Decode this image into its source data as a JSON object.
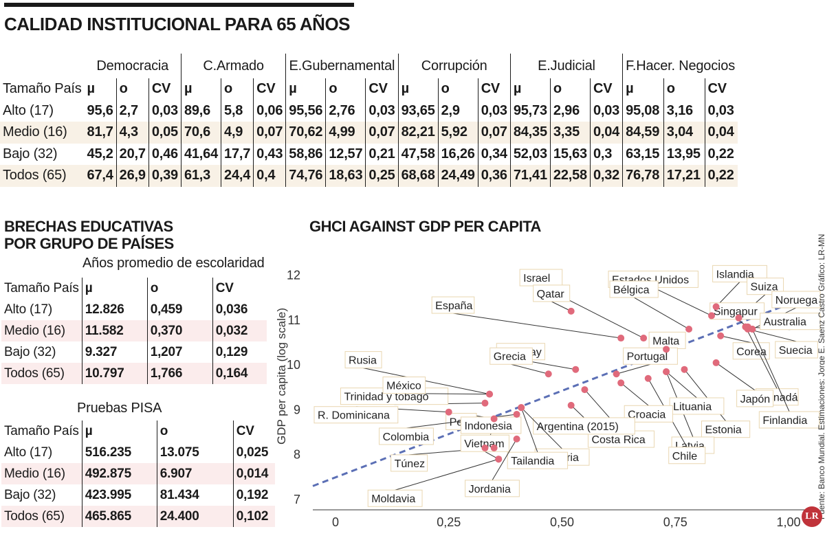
{
  "main_title": "CALIDAD INSTITUCIONAL PARA 65 AÑOS",
  "table1": {
    "groups": [
      "Democracia",
      "C.Armado",
      "E.Gubernamental",
      "Corrupción",
      "E.Judicial",
      "F.Hacer. Negocios"
    ],
    "row_header": "Tamaño País",
    "stat_labels": [
      "µ",
      "o",
      "CV"
    ],
    "rows": [
      {
        "label": "Alto (17)",
        "values": [
          "95,6",
          "2,7",
          "0,03",
          "89,6",
          "5,8",
          "0,06",
          "95,56",
          "2,76",
          "0,03",
          "93,65",
          "2,9",
          "0,03",
          "95,73",
          "2,96",
          "0,03",
          "95,08",
          "3,16",
          "0,03"
        ]
      },
      {
        "label": "Medio (16)",
        "values": [
          "81,7",
          "4,3",
          "0,05",
          "70,6",
          "4,9",
          "0,07",
          "70,62",
          "4,99",
          "0,07",
          "82,21",
          "5,92",
          "0,07",
          "84,35",
          "3,35",
          "0,04",
          "84,59",
          "3,04",
          "0,04"
        ]
      },
      {
        "label": "Bajo (32)",
        "values": [
          "45,2",
          "20,7",
          "0,46",
          "41,64",
          "17,7",
          "0,43",
          "58,86",
          "12,57",
          "0,21",
          "47,58",
          "16,26",
          "0,34",
          "52,03",
          "15,63",
          "0,3",
          "63,15",
          "13,95",
          "0,22"
        ]
      },
      {
        "label": "Todos (65)",
        "values": [
          "67,4",
          "26,9",
          "0,39",
          "61,3",
          "24,4",
          "0,4",
          "74,76",
          "18,63",
          "0,25",
          "68,68",
          "24,49",
          "0,36",
          "71,41",
          "22,58",
          "0,32",
          "76,78",
          "17,21",
          "0,22"
        ]
      }
    ]
  },
  "section2_title_line1": "BRECHAS EDUCATIVAS",
  "section2_title_line2": "POR GRUPO DE PAÍSES",
  "schooling": {
    "subtitle": "Años promedio de escolaridad",
    "headers": [
      "Tamaño País",
      "µ",
      "o",
      "CV"
    ],
    "rows": [
      [
        "Alto (17)",
        "12.826",
        "0,459",
        "0,036"
      ],
      [
        "Medio (16)",
        "11.582",
        "0,370",
        "0,032"
      ],
      [
        "Bajo (32)",
        "9.327",
        "1,207",
        "0,129"
      ],
      [
        "Todos (65)",
        "10.797",
        "1,766",
        "0,164"
      ]
    ]
  },
  "pisa": {
    "subtitle": "Pruebas PISA",
    "headers": [
      "Tamaño País",
      "µ",
      "o",
      "CV"
    ],
    "rows": [
      [
        "Alto (17)",
        "516.235",
        "13.075",
        "0,025"
      ],
      [
        "Medio (16)",
        "492.875",
        "6.907",
        "0,014"
      ],
      [
        "Bajo (32)",
        "423.995",
        "81.434",
        "0,192"
      ],
      [
        "Todos (65)",
        "465.865",
        "24.400",
        "0,102"
      ]
    ]
  },
  "chart_data": {
    "type": "scatter",
    "title": "GHCI AGAINST GDP PER CAPITA",
    "xlabel": "",
    "ylabel": "GDP per capita (log scale)",
    "xlim": [
      -0.05,
      1.05
    ],
    "ylim": [
      6.8,
      12.7
    ],
    "x_ticks": [
      0,
      0.25,
      0.5,
      0.75,
      1.0
    ],
    "x_tick_labels": [
      "0",
      "0,25",
      "0,50",
      "0,75",
      "1,00"
    ],
    "y_ticks": [
      7,
      8,
      9,
      10,
      11,
      12
    ],
    "y_tick_labels": [
      "7",
      "8",
      "9",
      "10",
      "11",
      "12"
    ],
    "trendline": {
      "x": [
        -0.05,
        1.05
      ],
      "y": [
        7.3,
        11.55
      ],
      "color": "#5b6fb5",
      "style": "dashed"
    },
    "point_color": "#e06a7b",
    "grid": false,
    "points": [
      {
        "name": "Islandia",
        "x": 0.84,
        "y": 11.3
      },
      {
        "name": "Estados Unidos",
        "x": 0.83,
        "y": 11.1
      },
      {
        "name": "Suiza",
        "x": 0.89,
        "y": 11.05
      },
      {
        "name": "Singapur",
        "x": 0.91,
        "y": 10.85
      },
      {
        "name": "Noruega",
        "x": 0.92,
        "y": 10.8
      },
      {
        "name": "Australia",
        "x": 0.905,
        "y": 10.85
      },
      {
        "name": "Suecia",
        "x": 0.91,
        "y": 10.8
      },
      {
        "name": "Israel",
        "x": 0.68,
        "y": 10.6
      },
      {
        "name": "Qatar",
        "x": 0.52,
        "y": 11.2
      },
      {
        "name": "Bélgica",
        "x": 0.78,
        "y": 10.8
      },
      {
        "name": "España",
        "x": 0.63,
        "y": 10.6
      },
      {
        "name": "Malta",
        "x": 0.73,
        "y": 10.35
      },
      {
        "name": "Corea",
        "x": 0.85,
        "y": 10.65
      },
      {
        "name": "Canadá",
        "x": 0.905,
        "y": 10.85
      },
      {
        "name": "Finlandia",
        "x": 0.92,
        "y": 10.8
      },
      {
        "name": "Japón",
        "x": 0.84,
        "y": 10.05
      },
      {
        "name": "Estonia",
        "x": 0.77,
        "y": 9.9
      },
      {
        "name": "Latvia",
        "x": 0.73,
        "y": 9.85
      },
      {
        "name": "Lituania",
        "x": 0.73,
        "y": 9.85
      },
      {
        "name": "Portugal",
        "x": 0.62,
        "y": 9.8
      },
      {
        "name": "Chile",
        "x": 0.69,
        "y": 9.7
      },
      {
        "name": "Croacia",
        "x": 0.63,
        "y": 9.6
      },
      {
        "name": "Uruguay",
        "x": 0.53,
        "y": 9.9
      },
      {
        "name": "Grecia",
        "x": 0.47,
        "y": 9.8
      },
      {
        "name": "Costa Rica",
        "x": 0.55,
        "y": 9.45
      },
      {
        "name": "Argentina (2015)",
        "x": 0.52,
        "y": 9.1
      },
      {
        "name": "Bulgaria",
        "x": 0.41,
        "y": 9.05
      },
      {
        "name": "Rusia",
        "x": 0.34,
        "y": 9.35
      },
      {
        "name": "Trinidad y tobago",
        "x": 0.33,
        "y": 9.15
      },
      {
        "name": "México",
        "x": 0.34,
        "y": 9.35
      },
      {
        "name": "R. Dominicana",
        "x": 0.25,
        "y": 8.95
      },
      {
        "name": "Perú",
        "x": 0.35,
        "y": 8.8
      },
      {
        "name": "Colombia",
        "x": 0.4,
        "y": 8.9
      },
      {
        "name": "Tailandia",
        "x": 0.41,
        "y": 9.05
      },
      {
        "name": "Indonesia",
        "x": 0.33,
        "y": 8.15
      },
      {
        "name": "Túnez",
        "x": 0.35,
        "y": 8.15
      },
      {
        "name": "Vietnam",
        "x": 0.36,
        "y": 7.9
      },
      {
        "name": "Moldavia",
        "x": 0.36,
        "y": 7.9
      },
      {
        "name": "Jordania",
        "x": 0.4,
        "y": 8.35
      }
    ]
  },
  "source_note": "Fuente: Banco Mundial. Estimaciones: Jorge E. Saenz Castro   Gráfico: LR-MN",
  "logo_text": "LR"
}
